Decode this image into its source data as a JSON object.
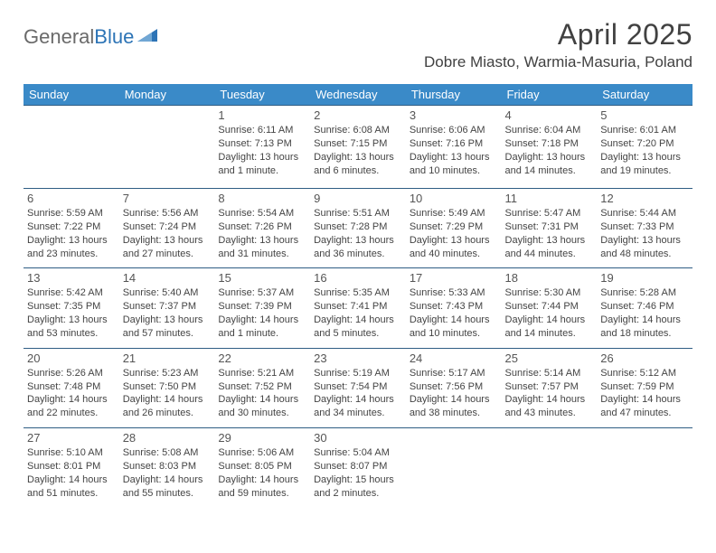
{
  "logo": {
    "text1": "General",
    "text2": "Blue"
  },
  "title": "April 2025",
  "location": "Dobre Miasto, Warmia-Masuria, Poland",
  "colors": {
    "header_bg": "#3a8ac8",
    "header_text": "#ffffff",
    "row_border": "#2f5d84",
    "logo_gray": "#6a6a6a",
    "logo_blue": "#2d74b6",
    "text": "#333333"
  },
  "day_headers": [
    "Sunday",
    "Monday",
    "Tuesday",
    "Wednesday",
    "Thursday",
    "Friday",
    "Saturday"
  ],
  "weeks": [
    [
      null,
      null,
      {
        "n": "1",
        "sunrise": "6:11 AM",
        "sunset": "7:13 PM",
        "daylight": "13 hours and 1 minute."
      },
      {
        "n": "2",
        "sunrise": "6:08 AM",
        "sunset": "7:15 PM",
        "daylight": "13 hours and 6 minutes."
      },
      {
        "n": "3",
        "sunrise": "6:06 AM",
        "sunset": "7:16 PM",
        "daylight": "13 hours and 10 minutes."
      },
      {
        "n": "4",
        "sunrise": "6:04 AM",
        "sunset": "7:18 PM",
        "daylight": "13 hours and 14 minutes."
      },
      {
        "n": "5",
        "sunrise": "6:01 AM",
        "sunset": "7:20 PM",
        "daylight": "13 hours and 19 minutes."
      }
    ],
    [
      {
        "n": "6",
        "sunrise": "5:59 AM",
        "sunset": "7:22 PM",
        "daylight": "13 hours and 23 minutes."
      },
      {
        "n": "7",
        "sunrise": "5:56 AM",
        "sunset": "7:24 PM",
        "daylight": "13 hours and 27 minutes."
      },
      {
        "n": "8",
        "sunrise": "5:54 AM",
        "sunset": "7:26 PM",
        "daylight": "13 hours and 31 minutes."
      },
      {
        "n": "9",
        "sunrise": "5:51 AM",
        "sunset": "7:28 PM",
        "daylight": "13 hours and 36 minutes."
      },
      {
        "n": "10",
        "sunrise": "5:49 AM",
        "sunset": "7:29 PM",
        "daylight": "13 hours and 40 minutes."
      },
      {
        "n": "11",
        "sunrise": "5:47 AM",
        "sunset": "7:31 PM",
        "daylight": "13 hours and 44 minutes."
      },
      {
        "n": "12",
        "sunrise": "5:44 AM",
        "sunset": "7:33 PM",
        "daylight": "13 hours and 48 minutes."
      }
    ],
    [
      {
        "n": "13",
        "sunrise": "5:42 AM",
        "sunset": "7:35 PM",
        "daylight": "13 hours and 53 minutes."
      },
      {
        "n": "14",
        "sunrise": "5:40 AM",
        "sunset": "7:37 PM",
        "daylight": "13 hours and 57 minutes."
      },
      {
        "n": "15",
        "sunrise": "5:37 AM",
        "sunset": "7:39 PM",
        "daylight": "14 hours and 1 minute."
      },
      {
        "n": "16",
        "sunrise": "5:35 AM",
        "sunset": "7:41 PM",
        "daylight": "14 hours and 5 minutes."
      },
      {
        "n": "17",
        "sunrise": "5:33 AM",
        "sunset": "7:43 PM",
        "daylight": "14 hours and 10 minutes."
      },
      {
        "n": "18",
        "sunrise": "5:30 AM",
        "sunset": "7:44 PM",
        "daylight": "14 hours and 14 minutes."
      },
      {
        "n": "19",
        "sunrise": "5:28 AM",
        "sunset": "7:46 PM",
        "daylight": "14 hours and 18 minutes."
      }
    ],
    [
      {
        "n": "20",
        "sunrise": "5:26 AM",
        "sunset": "7:48 PM",
        "daylight": "14 hours and 22 minutes."
      },
      {
        "n": "21",
        "sunrise": "5:23 AM",
        "sunset": "7:50 PM",
        "daylight": "14 hours and 26 minutes."
      },
      {
        "n": "22",
        "sunrise": "5:21 AM",
        "sunset": "7:52 PM",
        "daylight": "14 hours and 30 minutes."
      },
      {
        "n": "23",
        "sunrise": "5:19 AM",
        "sunset": "7:54 PM",
        "daylight": "14 hours and 34 minutes."
      },
      {
        "n": "24",
        "sunrise": "5:17 AM",
        "sunset": "7:56 PM",
        "daylight": "14 hours and 38 minutes."
      },
      {
        "n": "25",
        "sunrise": "5:14 AM",
        "sunset": "7:57 PM",
        "daylight": "14 hours and 43 minutes."
      },
      {
        "n": "26",
        "sunrise": "5:12 AM",
        "sunset": "7:59 PM",
        "daylight": "14 hours and 47 minutes."
      }
    ],
    [
      {
        "n": "27",
        "sunrise": "5:10 AM",
        "sunset": "8:01 PM",
        "daylight": "14 hours and 51 minutes."
      },
      {
        "n": "28",
        "sunrise": "5:08 AM",
        "sunset": "8:03 PM",
        "daylight": "14 hours and 55 minutes."
      },
      {
        "n": "29",
        "sunrise": "5:06 AM",
        "sunset": "8:05 PM",
        "daylight": "14 hours and 59 minutes."
      },
      {
        "n": "30",
        "sunrise": "5:04 AM",
        "sunset": "8:07 PM",
        "daylight": "15 hours and 2 minutes."
      },
      null,
      null,
      null
    ]
  ],
  "labels": {
    "sunrise": "Sunrise:",
    "sunset": "Sunset:",
    "daylight": "Daylight:"
  }
}
